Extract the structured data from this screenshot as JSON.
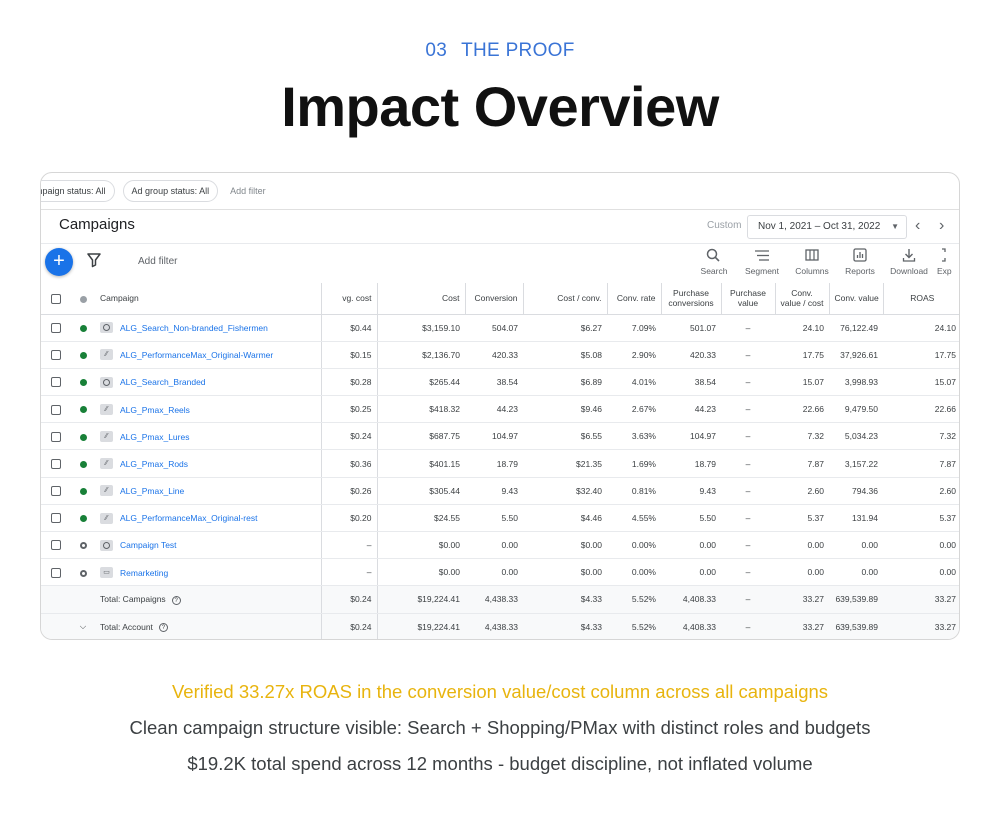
{
  "header": {
    "section_number": "03",
    "section_label": "THE PROOF",
    "title": "Impact Overview"
  },
  "filters": {
    "campaign_status": "mpaign status: All",
    "ad_group_status": "Ad group status: All",
    "add_filter": "Add filter"
  },
  "panel": {
    "title": "Campaigns",
    "date_custom_label": "Custom",
    "date_range": "Nov 1, 2021 – Oct 31, 2022",
    "prev_arrow": "‹",
    "next_arrow": "›"
  },
  "toolbar": {
    "add_filter": "Add filter",
    "tools": [
      {
        "label": "Search",
        "icon": "search-icon"
      },
      {
        "label": "Segment",
        "icon": "segment-icon"
      },
      {
        "label": "Columns",
        "icon": "columns-icon"
      },
      {
        "label": "Reports",
        "icon": "reports-icon"
      },
      {
        "label": "Download",
        "icon": "download-icon"
      },
      {
        "label": "Exp",
        "icon": "expand-icon"
      }
    ]
  },
  "table": {
    "columns": [
      "Campaign",
      "vg. cost",
      "Cost",
      "Conversion",
      "Cost / conv.",
      "Conv. rate",
      "Purchase conversions",
      "Purchase value",
      "Conv. value / cost",
      "Conv. value",
      "ROAS"
    ],
    "rows": [
      {
        "status": "green",
        "type": "search",
        "name": "ALG_Search_Non-branded_Fishermen",
        "avg_cost": "$0.44",
        "cost": "$3,159.10",
        "conversions": "504.07",
        "cost_per_conv": "$6.27",
        "conv_rate": "7.09%",
        "purchase_conv": "501.07",
        "purchase_value": "–",
        "value_per_cost": "24.10",
        "conv_value": "76,122.49",
        "roas": "24.10"
      },
      {
        "status": "green",
        "type": "pmax",
        "name": "ALG_PerformanceMax_Original-Warmer",
        "avg_cost": "$0.15",
        "cost": "$2,136.70",
        "conversions": "420.33",
        "cost_per_conv": "$5.08",
        "conv_rate": "2.90%",
        "purchase_conv": "420.33",
        "purchase_value": "–",
        "value_per_cost": "17.75",
        "conv_value": "37,926.61",
        "roas": "17.75"
      },
      {
        "status": "green",
        "type": "search",
        "name": "ALG_Search_Branded",
        "avg_cost": "$0.28",
        "cost": "$265.44",
        "conversions": "38.54",
        "cost_per_conv": "$6.89",
        "conv_rate": "4.01%",
        "purchase_conv": "38.54",
        "purchase_value": "–",
        "value_per_cost": "15.07",
        "conv_value": "3,998.93",
        "roas": "15.07"
      },
      {
        "status": "green",
        "type": "pmax",
        "name": "ALG_Pmax_Reels",
        "avg_cost": "$0.25",
        "cost": "$418.32",
        "conversions": "44.23",
        "cost_per_conv": "$9.46",
        "conv_rate": "2.67%",
        "purchase_conv": "44.23",
        "purchase_value": "–",
        "value_per_cost": "22.66",
        "conv_value": "9,479.50",
        "roas": "22.66"
      },
      {
        "status": "green",
        "type": "pmax",
        "name": "ALG_Pmax_Lures",
        "avg_cost": "$0.24",
        "cost": "$687.75",
        "conversions": "104.97",
        "cost_per_conv": "$6.55",
        "conv_rate": "3.63%",
        "purchase_conv": "104.97",
        "purchase_value": "–",
        "value_per_cost": "7.32",
        "conv_value": "5,034.23",
        "roas": "7.32"
      },
      {
        "status": "green",
        "type": "pmax",
        "name": "ALG_Pmax_Rods",
        "avg_cost": "$0.36",
        "cost": "$401.15",
        "conversions": "18.79",
        "cost_per_conv": "$21.35",
        "conv_rate": "1.69%",
        "purchase_conv": "18.79",
        "purchase_value": "–",
        "value_per_cost": "7.87",
        "conv_value": "3,157.22",
        "roas": "7.87"
      },
      {
        "status": "green",
        "type": "pmax",
        "name": "ALG_Pmax_Line",
        "avg_cost": "$0.26",
        "cost": "$305.44",
        "conversions": "9.43",
        "cost_per_conv": "$32.40",
        "conv_rate": "0.81%",
        "purchase_conv": "9.43",
        "purchase_value": "–",
        "value_per_cost": "2.60",
        "conv_value": "794.36",
        "roas": "2.60"
      },
      {
        "status": "green",
        "type": "pmax",
        "name": "ALG_PerformanceMax_Original-rest",
        "avg_cost": "$0.20",
        "cost": "$24.55",
        "conversions": "5.50",
        "cost_per_conv": "$4.46",
        "conv_rate": "4.55%",
        "purchase_conv": "5.50",
        "purchase_value": "–",
        "value_per_cost": "5.37",
        "conv_value": "131.94",
        "roas": "5.37"
      },
      {
        "status": "paused",
        "type": "search",
        "name": "Campaign Test",
        "avg_cost": "–",
        "cost": "$0.00",
        "conversions": "0.00",
        "cost_per_conv": "$0.00",
        "conv_rate": "0.00%",
        "purchase_conv": "0.00",
        "purchase_value": "–",
        "value_per_cost": "0.00",
        "conv_value": "0.00",
        "roas": "0.00"
      },
      {
        "status": "paused",
        "type": "display",
        "name": "Remarketing",
        "avg_cost": "–",
        "cost": "$0.00",
        "conversions": "0.00",
        "cost_per_conv": "$0.00",
        "conv_rate": "0.00%",
        "purchase_conv": "0.00",
        "purchase_value": "–",
        "value_per_cost": "0.00",
        "conv_value": "0.00",
        "roas": "0.00"
      }
    ],
    "totals": [
      {
        "label": "Total: Campaigns",
        "avg_cost": "$0.24",
        "cost": "$19,224.41",
        "conversions": "4,438.33",
        "cost_per_conv": "$4.33",
        "conv_rate": "5.52%",
        "purchase_conv": "4,408.33",
        "purchase_value": "–",
        "value_per_cost": "33.27",
        "conv_value": "639,539.89",
        "roas": "33.27"
      },
      {
        "label": "Total: Account",
        "avg_cost": "$0.24",
        "cost": "$19,224.41",
        "conversions": "4,438.33",
        "cost_per_conv": "$4.33",
        "conv_rate": "5.52%",
        "purchase_conv": "4,408.33",
        "purchase_value": "–",
        "value_per_cost": "33.27",
        "conv_value": "639,539.89",
        "roas": "33.27"
      }
    ]
  },
  "captions": {
    "highlight": "Verified 33.27x ROAS in the conversion value/cost column across all campaigns",
    "line2": "Clean campaign structure visible: Search + Shopping/PMax with distinct roles and budgets",
    "line3": "$19.2K total spend across 12 months - budget discipline, not inflated volume"
  },
  "colors": {
    "accent_blue": "#1a73e8",
    "eyebrow_blue": "#3a74d6",
    "highlight_gold": "#e8b40e",
    "status_green": "#188038"
  }
}
